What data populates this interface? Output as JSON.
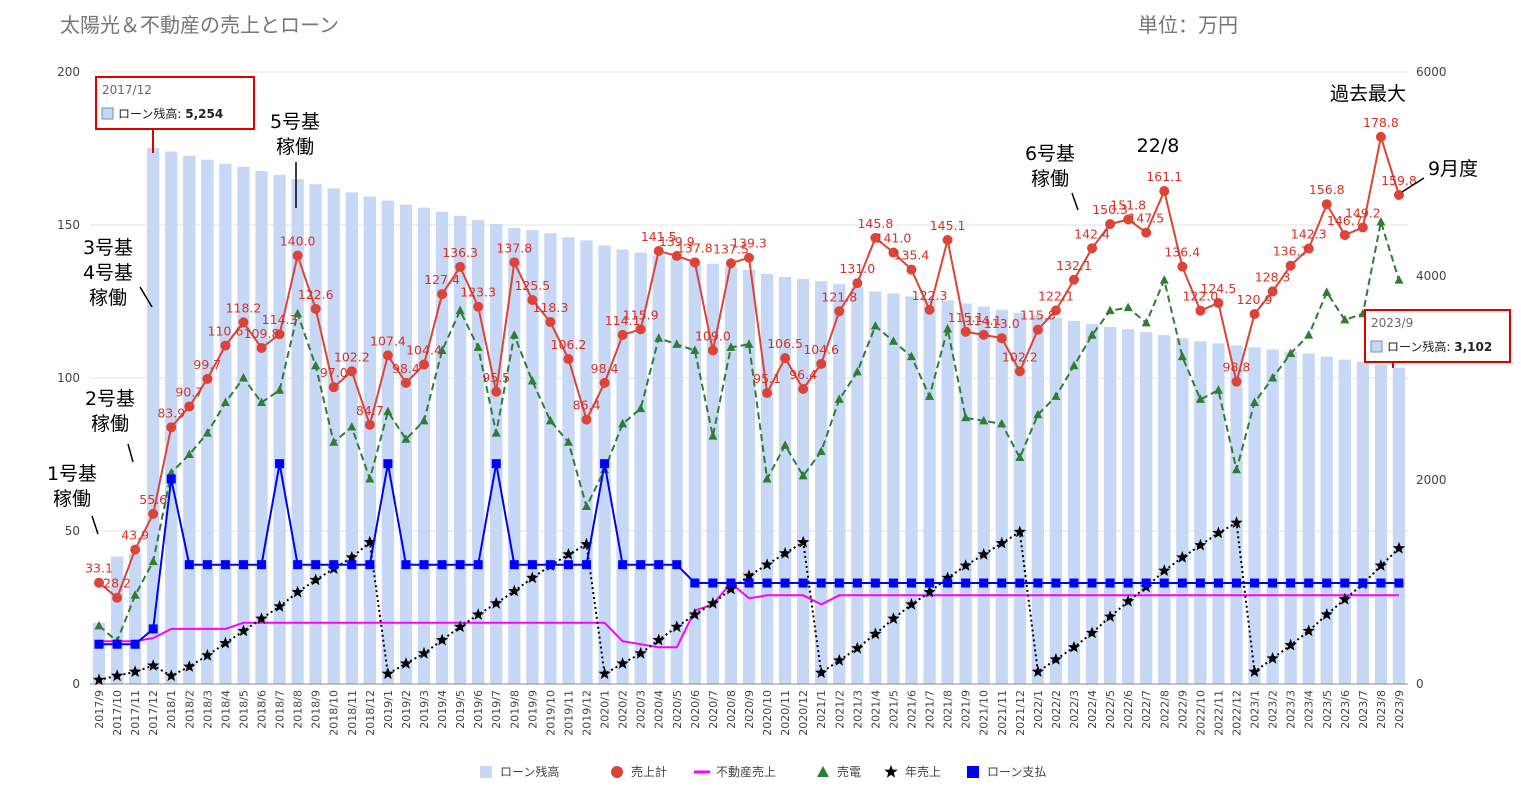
{
  "title": "太陽光＆不動産の売上とローン",
  "unit_label": "単位：万円",
  "colors": {
    "loan_balance": "#c6d8f5",
    "total_sales": "#db4437",
    "real_estate": "#ff00ff",
    "power": "#2e7d32",
    "annual": "#000000",
    "loan_payment": "#0000ff",
    "callout_border": "#e00000"
  },
  "annotations": {
    "a1": [
      "1号基",
      "稼働"
    ],
    "a2": [
      "2号基",
      "稼働"
    ],
    "a34": [
      "3号基",
      "4号基",
      "稼働"
    ],
    "a5": [
      "5号基",
      "稼働"
    ],
    "a6": [
      "6号基",
      "稼働"
    ],
    "a228": "22/8",
    "record": "過去最大",
    "sep": "9月度"
  },
  "tooltips": [
    {
      "period": "2017/12",
      "label": "ローン残高:",
      "value": "5,254"
    },
    {
      "period": "2023/9",
      "label": "ローン残高:",
      "value": "3,102"
    }
  ],
  "chart_data": {
    "type": "bar+line",
    "y_left": {
      "min": 0,
      "max": 200,
      "ticks": [
        0,
        50,
        100,
        150,
        200
      ]
    },
    "y_right": {
      "min": 0,
      "max": 6000,
      "ticks": [
        0,
        2000,
        4000,
        6000
      ]
    },
    "categories": [
      "2017/9",
      "2017/10",
      "2017/11",
      "2017/12",
      "2018/1",
      "2018/2",
      "2018/3",
      "2018/4",
      "2018/5",
      "2018/6",
      "2018/7",
      "2018/8",
      "2018/9",
      "2018/10",
      "2018/11",
      "2018/12",
      "2019/1",
      "2019/2",
      "2019/3",
      "2019/4",
      "2019/5",
      "2019/6",
      "2019/7",
      "2019/8",
      "2019/9",
      "2019/10",
      "2019/11",
      "2019/12",
      "2020/1",
      "2020/2",
      "2020/3",
      "2020/4",
      "2020/5",
      "2020/6",
      "2020/7",
      "2020/8",
      "2020/9",
      "2020/10",
      "2020/11",
      "2020/12",
      "2021/1",
      "2021/2",
      "2021/3",
      "2021/4",
      "2021/5",
      "2021/6",
      "2021/7",
      "2021/8",
      "2021/9",
      "2021/10",
      "2021/11",
      "2021/12",
      "2022/1",
      "2022/2",
      "2022/3",
      "2022/4",
      "2022/5",
      "2022/6",
      "2022/7",
      "2022/8",
      "2022/9",
      "2022/10",
      "2022/11",
      "2022/12",
      "2023/1",
      "2023/2",
      "2023/3",
      "2023/4",
      "2023/5",
      "2023/6",
      "2023/7",
      "2023/8",
      "2023/9"
    ],
    "series": [
      {
        "name": "ローン残高",
        "type": "bar",
        "axis": "right",
        "values": [
          600,
          1250,
          1280,
          5254,
          5220,
          5180,
          5140,
          5100,
          5070,
          5030,
          4990,
          4950,
          4900,
          4860,
          4820,
          4780,
          4740,
          4700,
          4670,
          4630,
          4590,
          4550,
          4510,
          4470,
          4450,
          4420,
          4380,
          4350,
          4300,
          4260,
          4230,
          4200,
          4180,
          4150,
          4120,
          4090,
          4060,
          4020,
          3990,
          3970,
          3950,
          3920,
          3890,
          3850,
          3830,
          3800,
          3780,
          3760,
          3730,
          3700,
          3670,
          3640,
          3620,
          3590,
          3560,
          3530,
          3500,
          3480,
          3450,
          3420,
          3390,
          3360,
          3340,
          3320,
          3300,
          3280,
          3260,
          3240,
          3210,
          3180,
          3160,
          3130,
          3102
        ]
      },
      {
        "name": "売上計",
        "type": "line",
        "axis": "left",
        "values": [
          33.1,
          28.2,
          43.9,
          55.6,
          83.9,
          90.7,
          99.7,
          110.6,
          118.2,
          109.8,
          114.3,
          140.0,
          122.6,
          97.0,
          102.2,
          84.7,
          107.4,
          98.4,
          104.4,
          127.4,
          136.3,
          123.3,
          95.5,
          137.8,
          125.5,
          118.3,
          106.2,
          86.4,
          98.4,
          114.1,
          115.9,
          141.5,
          139.9,
          137.8,
          109.0,
          137.5,
          139.3,
          95.1,
          106.5,
          96.4,
          104.6,
          121.8,
          131.0,
          145.8,
          141.0,
          135.4,
          122.3,
          145.1,
          115.1,
          114.1,
          113.0,
          102.2,
          115.8,
          122.1,
          132.1,
          142.4,
          150.3,
          151.8,
          147.5,
          161.1,
          136.4,
          122.0,
          124.5,
          98.8,
          120.9,
          128.3,
          136.7,
          142.3,
          156.8,
          146.7,
          149.2,
          178.8,
          159.8
        ],
        "labels": [
          "33.1",
          "28.2",
          "43.9",
          "55.6",
          "83.9",
          "90.7",
          "99.7",
          "110.6",
          "118.2",
          "109.8",
          "114.3",
          "140.0",
          "122.6",
          "97.0",
          "102.2",
          "84.7",
          "107.4",
          "98.4",
          "104.4",
          "127.4",
          "136.3",
          "123.3",
          "95.5",
          "137.8",
          "125.5",
          "118.3",
          "106.2",
          "86.4",
          "98.4",
          "114.1",
          "115.9",
          "141.5",
          "139.9",
          "137.8",
          "109.0",
          "137.5",
          "139.3",
          "95.1",
          "106.5",
          "96.4",
          "104.6",
          "121.8",
          "131.0",
          "145.8",
          "141.0",
          "135.4",
          "122.3",
          "145.1",
          "115.1",
          "114.1",
          "113.0",
          "102.2",
          "115.8",
          "122.1",
          "132.1",
          "142.4",
          "150.3",
          "151.8",
          "147.5",
          "161.1",
          "136.4",
          "122.0",
          "124.5",
          "98.8",
          "120.9",
          "128.3",
          "136.7",
          "142.3",
          "156.8",
          "146.7",
          "149.2",
          "178.8",
          "159.8"
        ]
      },
      {
        "name": "不動産売上",
        "type": "line",
        "axis": "left",
        "values": [
          14,
          14,
          14,
          15,
          18,
          18,
          18,
          18,
          20,
          20,
          20,
          20,
          20,
          20,
          20,
          20,
          20,
          20,
          20,
          20,
          20,
          20,
          20,
          20,
          20,
          20,
          20,
          20,
          20,
          14,
          13,
          12,
          12,
          24,
          26,
          33,
          28,
          29,
          29,
          29,
          26,
          29,
          29,
          29,
          29,
          29,
          29,
          29,
          29,
          29,
          29,
          29,
          29,
          29,
          29,
          29,
          29,
          29,
          29,
          29,
          29,
          29,
          29,
          29,
          29,
          29,
          29,
          29,
          29,
          29,
          29,
          29,
          29
        ]
      },
      {
        "name": "売電",
        "type": "line",
        "axis": "left",
        "values": [
          19,
          14,
          29,
          40,
          69,
          75,
          82,
          92,
          100,
          92,
          96,
          121,
          104,
          79,
          84,
          67,
          89,
          80,
          86,
          109,
          122,
          110,
          82,
          114,
          99,
          86,
          79,
          58,
          70,
          85,
          90,
          113,
          111,
          109,
          81,
          110,
          111,
          67,
          78,
          68,
          76,
          93,
          102,
          117,
          112,
          107,
          94,
          116,
          87,
          86,
          85,
          74,
          88,
          94,
          104,
          114,
          122,
          123,
          118,
          132,
          107,
          93,
          96,
          70,
          92,
          100,
          108,
          114,
          128,
          119,
          121,
          151,
          132
        ]
      },
      {
        "name": "年売上",
        "type": "line",
        "axis": "right",
        "values": [
          40,
          80,
          120,
          180,
          80,
          170,
          280,
          400,
          520,
          640,
          760,
          900,
          1020,
          1130,
          1240,
          1390,
          100,
          200,
          300,
          430,
          560,
          680,
          790,
          910,
          1040,
          1160,
          1270,
          1370,
          100,
          200,
          300,
          430,
          560,
          680,
          790,
          930,
          1060,
          1170,
          1280,
          1390,
          110,
          230,
          350,
          490,
          640,
          780,
          900,
          1040,
          1160,
          1270,
          1380,
          1490,
          120,
          240,
          360,
          500,
          660,
          810,
          950,
          1110,
          1240,
          1360,
          1480,
          1580,
          120,
          250,
          380,
          520,
          680,
          830,
          980,
          1160,
          1330
        ]
      },
      {
        "name": "ローン支払",
        "type": "line",
        "axis": "left",
        "values": [
          13,
          13,
          13,
          18,
          67,
          39,
          39,
          39,
          39,
          39,
          72,
          39,
          39,
          39,
          39,
          39,
          72,
          39,
          39,
          39,
          39,
          39,
          72,
          39,
          39,
          39,
          39,
          39,
          72,
          39,
          39,
          39,
          39,
          33,
          33,
          33,
          33,
          33,
          33,
          33,
          33,
          33,
          33,
          33,
          33,
          33,
          33,
          33,
          33,
          33,
          33,
          33,
          33,
          33,
          33,
          33,
          33,
          33,
          33,
          33,
          33,
          33,
          33,
          33,
          33,
          33,
          33,
          33,
          33,
          33,
          33,
          33,
          33
        ]
      }
    ],
    "legend": [
      "ローン残高",
      "売上計",
      "不動産売上",
      "売電",
      "年売上",
      "ローン支払"
    ],
    "legend_position": "bottom",
    "grid": true
  }
}
